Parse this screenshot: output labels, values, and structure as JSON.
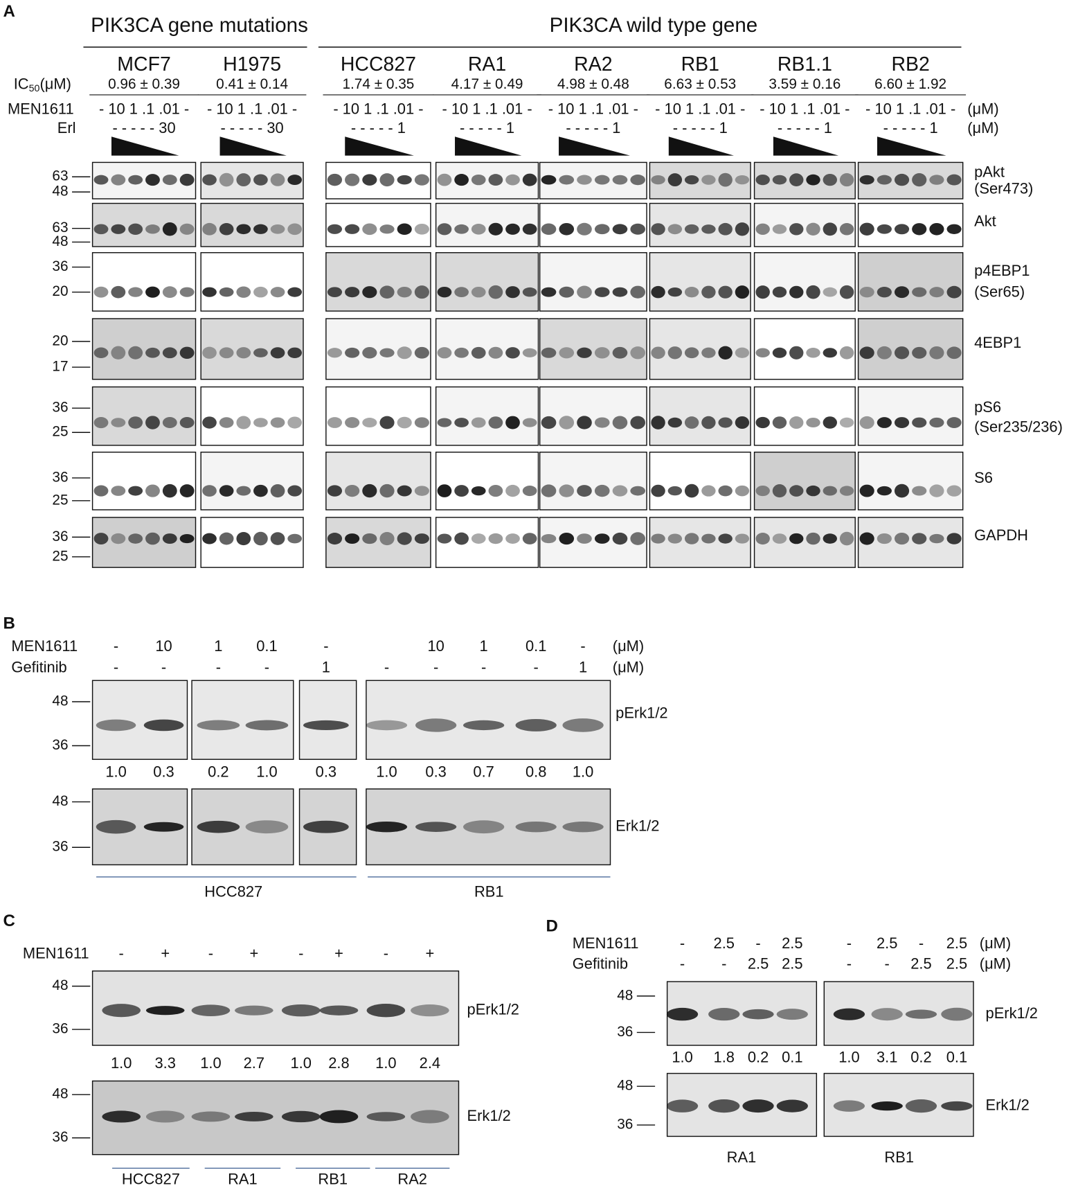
{
  "panel_a": {
    "label": "A",
    "groups": [
      "PIK3CA gene mutations",
      "PIK3CA wild type gene"
    ],
    "ic50_label": {
      "symbol": "IC",
      "subscript": "50",
      "unit": "(μM)"
    },
    "treatment_labels": [
      "MEN1611",
      "Erl"
    ],
    "units": [
      "(μM)",
      "(μM)"
    ],
    "cell_lines": [
      {
        "name": "MCF7",
        "ic50": "0.96 ± 0.39",
        "men1611": "- 10 1 .1 .01 -",
        "erl": "- - - - - 30"
      },
      {
        "name": "H1975",
        "ic50": "0.41 ± 0.14",
        "men1611": "- 10 1 .1 .01 -",
        "erl": "- - - - - 30"
      },
      {
        "name": "HCC827",
        "ic50": "1.74 ± 0.35",
        "men1611": "- 10 1 .1 .01 -",
        "erl": "- - - - - 1"
      },
      {
        "name": "RA1",
        "ic50": "4.17 ± 0.49",
        "men1611": "- 10 1 .1 .01 -",
        "erl": "- - - - - 1"
      },
      {
        "name": "RA2",
        "ic50": "4.98 ± 0.48",
        "men1611": "- 10 1 .1 .01 -",
        "erl": "- - - - - 1"
      },
      {
        "name": "RB1",
        "ic50": "6.63 ± 0.53",
        "men1611": "- 10 1 .1 .01 -",
        "erl": "- - - - - 1"
      },
      {
        "name": "RB1.1",
        "ic50": "3.59 ± 0.16",
        "men1611": "- 10 1 .1 .01 -",
        "erl": "- - - - - 1"
      },
      {
        "name": "RB2",
        "ic50": "6.60 ± 1.92",
        "men1611": "- 10 1 .1 .01 -",
        "erl": "- - - - - 1"
      }
    ],
    "blots": [
      {
        "protein": [
          "pAkt",
          "(Ser473)"
        ],
        "markers": [
          63,
          48
        ]
      },
      {
        "protein": [
          "Akt"
        ],
        "markers": [
          63,
          48
        ]
      },
      {
        "protein": [
          "p4EBP1",
          "(Ser65)"
        ],
        "markers": [
          36,
          20
        ]
      },
      {
        "protein": [
          "4EBP1"
        ],
        "markers": [
          20,
          17
        ]
      },
      {
        "protein": [
          "pS6",
          "(Ser235/236)"
        ],
        "markers": [
          36,
          25
        ]
      },
      {
        "protein": [
          "S6"
        ],
        "markers": [
          36,
          25
        ]
      },
      {
        "protein": [
          "GAPDH"
        ],
        "markers": [
          36,
          25
        ]
      }
    ]
  },
  "panel_b": {
    "label": "B",
    "treatment_labels": [
      "MEN1611",
      "Gefitinib"
    ],
    "units": [
      "(μM)",
      "(μM)"
    ],
    "men1611": [
      "-",
      "10",
      "1",
      "0.1",
      "-",
      null,
      "10",
      "1",
      "0.1",
      "-"
    ],
    "gefitinib": [
      "-",
      "-",
      "-",
      "-",
      "1",
      "-",
      "-",
      "-",
      "-",
      "1"
    ],
    "quantification": [
      "1.0",
      "0.3",
      "0.2",
      "1.0",
      "0.3",
      "1.0",
      "0.3",
      "0.7",
      "0.8",
      "1.0"
    ],
    "blots": [
      {
        "protein": "pErk1/2",
        "markers": [
          48,
          36
        ]
      },
      {
        "protein": "Erk1/2",
        "markers": [
          48,
          36
        ]
      }
    ],
    "groups": [
      "HCC827",
      "RB1"
    ]
  },
  "panel_c": {
    "label": "C",
    "treatment_labels": [
      "MEN1611"
    ],
    "men1611": [
      "-",
      "+",
      "-",
      "+",
      "-",
      "+",
      "-",
      "+"
    ],
    "quantification": [
      "1.0",
      "3.3",
      "1.0",
      "2.7",
      "1.0",
      "2.8",
      "1.0",
      "2.4"
    ],
    "blots": [
      {
        "protein": "pErk1/2",
        "markers": [
          48,
          36
        ]
      },
      {
        "protein": "Erk1/2",
        "markers": [
          48,
          36
        ]
      }
    ],
    "groups": [
      "HCC827",
      "RA1",
      "RB1",
      "RA2"
    ]
  },
  "panel_d": {
    "label": "D",
    "treatment_labels": [
      "MEN1611",
      "Gefitinib"
    ],
    "units": [
      "(μM)",
      "(μM)"
    ],
    "men1611": [
      "-",
      "2.5",
      "-",
      "2.5",
      "-",
      "2.5",
      "-",
      "2.5"
    ],
    "gefitinib": [
      "-",
      "-",
      "2.5",
      "2.5",
      "-",
      "-",
      "2.5",
      "2.5"
    ],
    "quantification": [
      "1.0",
      "1.8",
      "0.2",
      "0.1",
      "1.0",
      "3.1",
      "0.2",
      "0.1"
    ],
    "blots": [
      {
        "protein": "pErk1/2",
        "markers": [
          48,
          36
        ]
      },
      {
        "protein": "Erk1/2",
        "markers": [
          48,
          36
        ]
      }
    ],
    "groups": [
      "RA1",
      "RB1"
    ]
  }
}
